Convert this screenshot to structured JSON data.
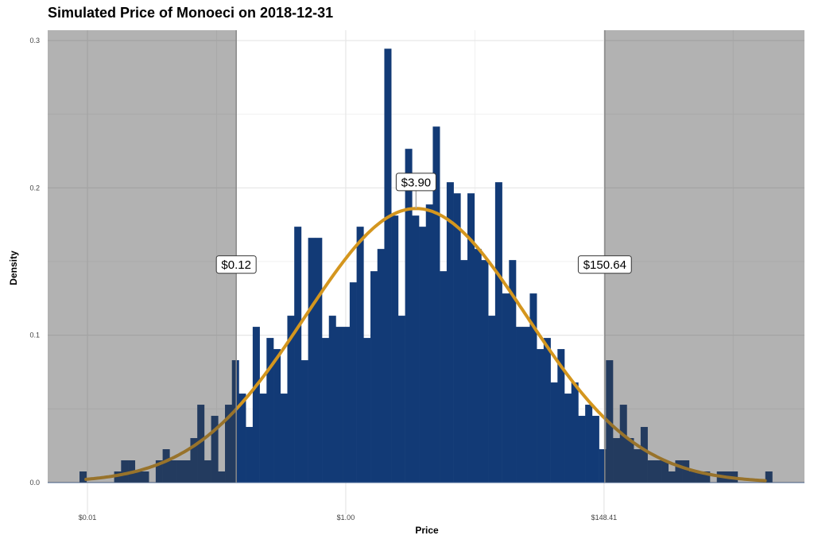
{
  "colors": {
    "bar": "#123a76",
    "curve": "#d4961e",
    "shade": "rgba(63,63,63,0.4)",
    "grid": "#e6e6e6"
  },
  "chart_data": {
    "type": "bar",
    "title": "Simulated Price of Monoeci on 2018-12-31",
    "xlabel": "Price",
    "ylabel": "Density",
    "x_scale": "log (natural)",
    "xlim_ln": [
      -5.77,
      8.88
    ],
    "ylim": [
      0,
      0.307
    ],
    "bin_start_ln": -5.154,
    "bin_width_ln": 0.1341,
    "density_per_count": 0.00755,
    "bin_counts": [
      1,
      0,
      0,
      0,
      0,
      1,
      2,
      2,
      1,
      1,
      0,
      2,
      3,
      2,
      2,
      2,
      4,
      7,
      2,
      6,
      1,
      7,
      11,
      8,
      5,
      14,
      8,
      13,
      12,
      8,
      15,
      23,
      11,
      22,
      22,
      13,
      15,
      14,
      14,
      18,
      23,
      13,
      19,
      21,
      39,
      24,
      15,
      30,
      24,
      23,
      25,
      32,
      19,
      27,
      26,
      20,
      26,
      21,
      20,
      15,
      27,
      17,
      20,
      14,
      14,
      17,
      12,
      13,
      9,
      12,
      8,
      9,
      6,
      7,
      6,
      3,
      11,
      4,
      7,
      4,
      3,
      5,
      2,
      2,
      2,
      1,
      2,
      2,
      1,
      1,
      1,
      0,
      1,
      1,
      1,
      0,
      0,
      0,
      0,
      1
    ],
    "fit_curve": {
      "type": "normal (log-price)",
      "mean_ln": 1.361,
      "sd_ln": 2.145
    },
    "x_ticks": [
      {
        "ln": -5,
        "label": "$0.01"
      },
      {
        "ln": 0,
        "label": "$1.00"
      },
      {
        "ln": 5,
        "label": "$148.41"
      }
    ],
    "x_minor_ln": [
      -2.5,
      2.5,
      7.5
    ],
    "y_ticks": [
      {
        "v": 0,
        "label": "0.0"
      },
      {
        "v": 0.1,
        "label": "0.1"
      },
      {
        "v": 0.2,
        "label": "0.2"
      },
      {
        "v": 0.3,
        "label": "0.3"
      }
    ],
    "y_minor": [
      0.05,
      0.15,
      0.25
    ],
    "shaded_regions": [
      {
        "from": "min",
        "to_ln": -2.12
      },
      {
        "from_ln": 5.015,
        "to": "max"
      }
    ],
    "annotations": [
      {
        "label": "$0.12",
        "ln": -2.12,
        "y": 0.148,
        "vline": true
      },
      {
        "label": "$3.90",
        "ln": 1.361,
        "y": 0.204,
        "stem_to": 0.186
      },
      {
        "label": "$150.64",
        "ln": 5.015,
        "y": 0.148,
        "vline": true
      }
    ]
  }
}
